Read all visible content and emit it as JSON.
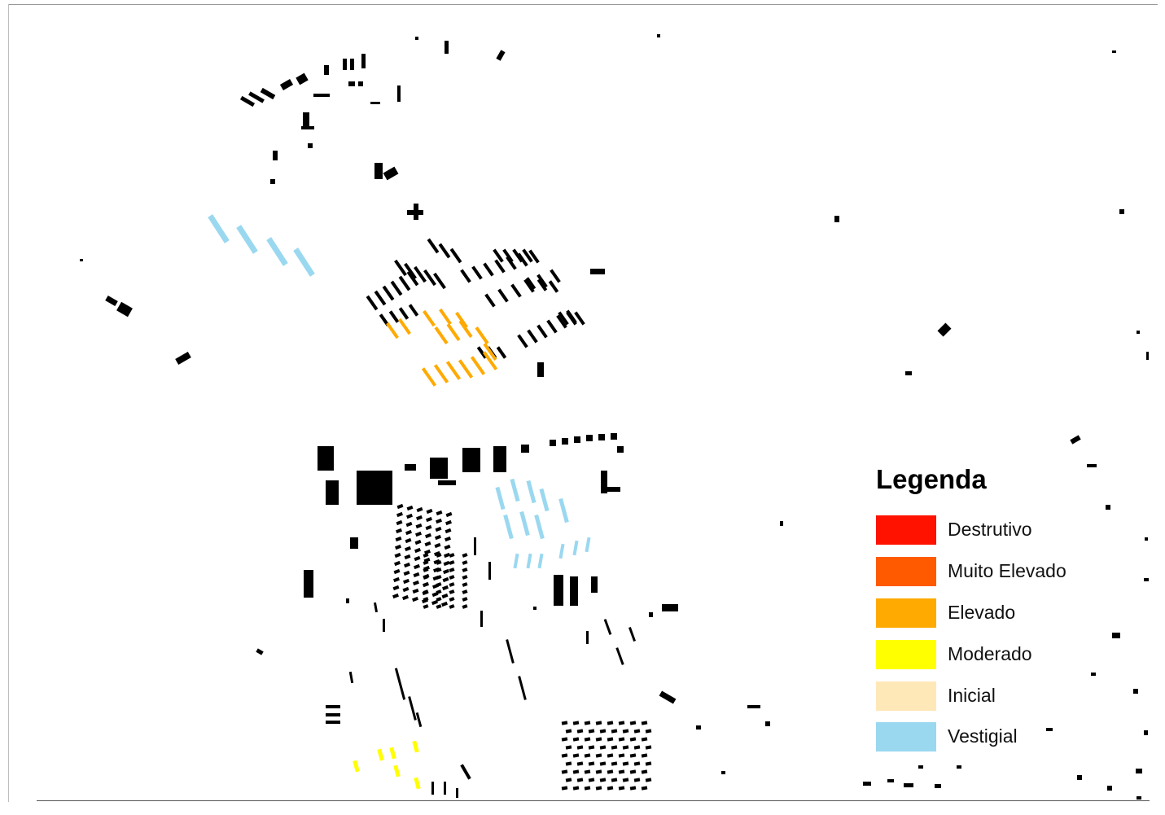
{
  "legend": {
    "title": "Legenda",
    "items": [
      {
        "label": "Destrutivo",
        "color": "#ff1200"
      },
      {
        "label": "Muito Elevado",
        "color": "#ff5a00"
      },
      {
        "label": "Elevado",
        "color": "#ffaa00"
      },
      {
        "label": "Moderado",
        "color": "#ffff00"
      },
      {
        "label": "Inicial",
        "color": "#ffe8b8"
      },
      {
        "label": "Vestigial",
        "color": "#9ad8f0"
      }
    ]
  },
  "map": {
    "background_color": "#ffffff",
    "building_color": "#000000"
  }
}
